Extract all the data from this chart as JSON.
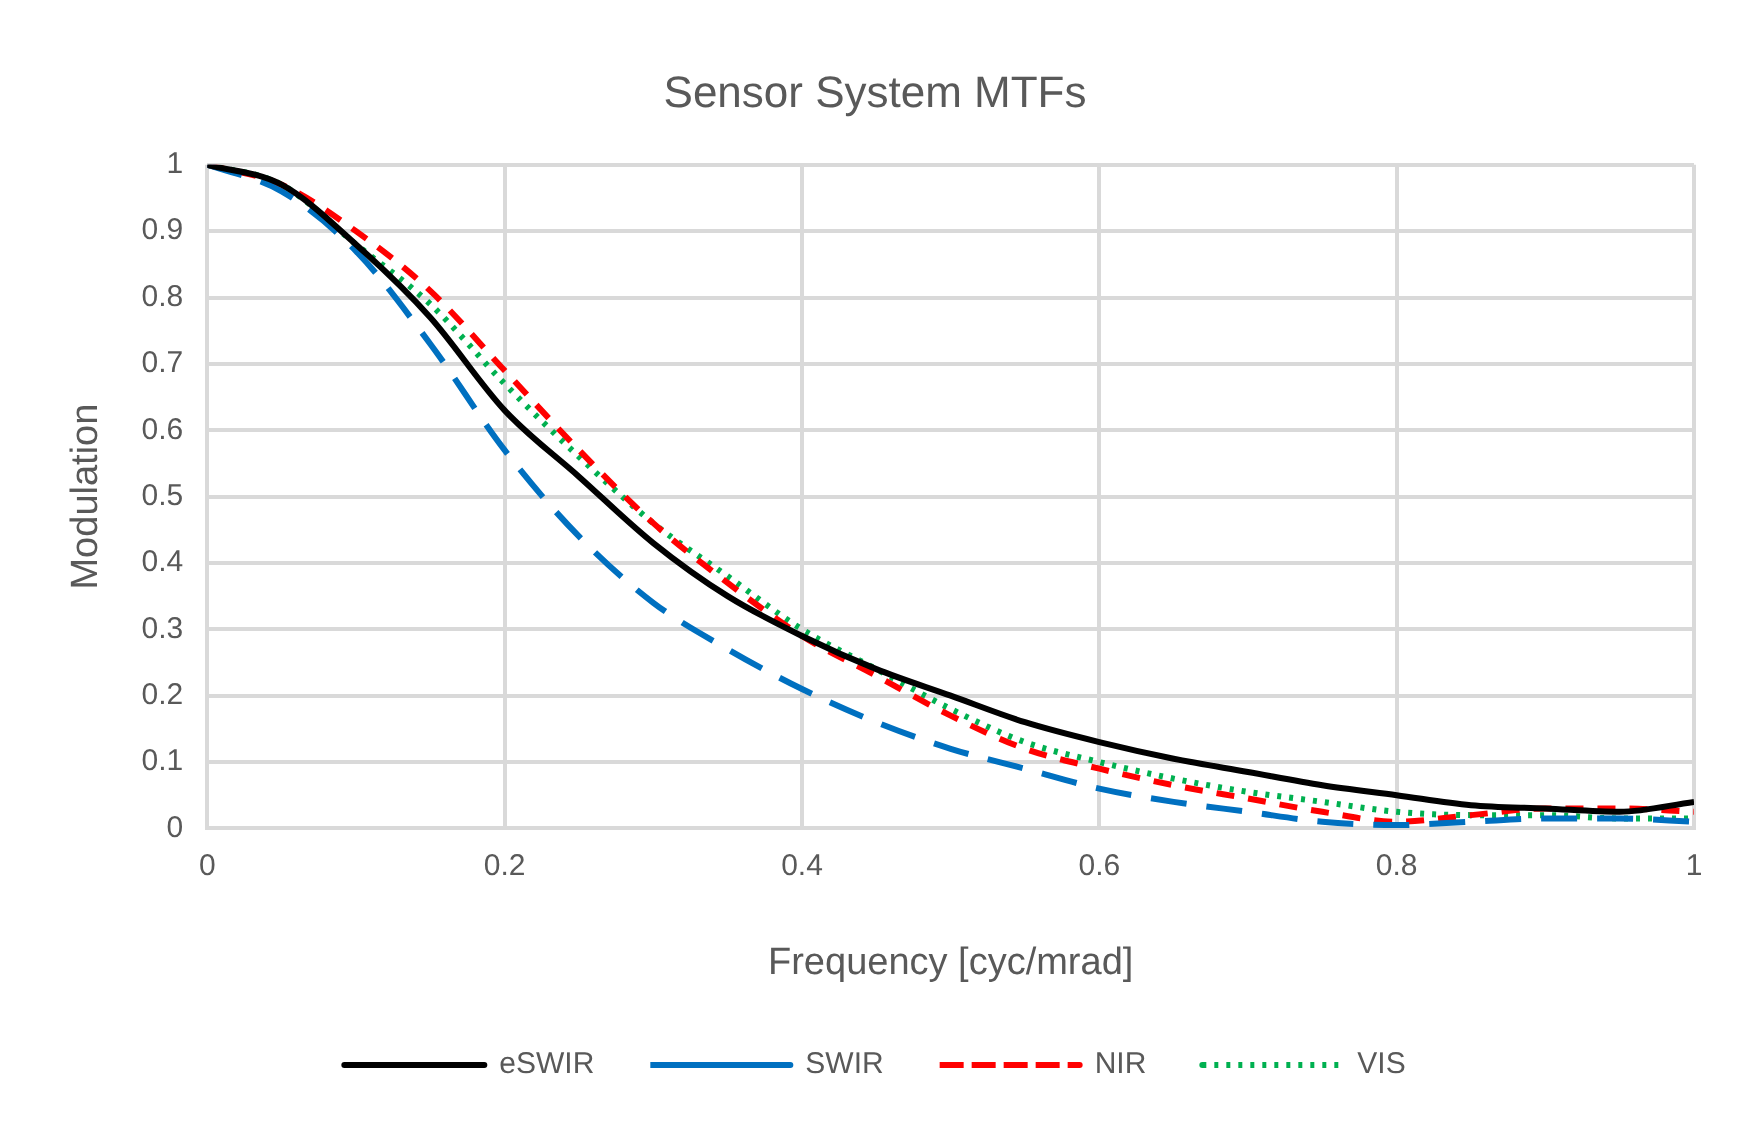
{
  "chart_data": {
    "type": "line",
    "title": "Sensor System MTFs",
    "xlabel": "Frequency [cyc/mrad]",
    "ylabel": "Modulation",
    "x": [
      0,
      0.05,
      0.1,
      0.15,
      0.2,
      0.25,
      0.3,
      0.35,
      0.4,
      0.45,
      0.5,
      0.55,
      0.6,
      0.65,
      0.7,
      0.75,
      0.8,
      0.85,
      0.9,
      0.95,
      1
    ],
    "series": [
      {
        "name": "eSWIR",
        "color": "#000000",
        "line_style": "solid",
        "values": [
          1,
          0.97,
          0.88,
          0.77,
          0.63,
          0.53,
          0.43,
          0.35,
          0.29,
          0.24,
          0.2,
          0.16,
          0.13,
          0.105,
          0.085,
          0.065,
          0.05,
          0.035,
          0.03,
          0.025,
          0.04
        ]
      },
      {
        "name": "SWIR",
        "color": "#0070c0",
        "line_style": "dashed",
        "values": [
          1,
          0.96,
          0.87,
          0.73,
          0.57,
          0.44,
          0.34,
          0.27,
          0.21,
          0.16,
          0.12,
          0.09,
          0.06,
          0.04,
          0.025,
          0.01,
          0.005,
          0.01,
          0.015,
          0.015,
          0.01
        ]
      },
      {
        "name": "NIR",
        "color": "#ff0000",
        "line_style": "dashed",
        "values": [
          1,
          0.97,
          0.9,
          0.81,
          0.69,
          0.57,
          0.46,
          0.37,
          0.29,
          0.23,
          0.17,
          0.12,
          0.09,
          0.065,
          0.045,
          0.025,
          0.01,
          0.02,
          0.03,
          0.03,
          0.025
        ]
      },
      {
        "name": "VIS",
        "color": "#00b050",
        "line_style": "dotted",
        "values": [
          1,
          0.97,
          0.88,
          0.79,
          0.67,
          0.56,
          0.46,
          0.38,
          0.3,
          0.24,
          0.18,
          0.13,
          0.1,
          0.075,
          0.055,
          0.04,
          0.025,
          0.02,
          0.02,
          0.015,
          0.015
        ]
      }
    ],
    "xlim": [
      0,
      1
    ],
    "xticks": [
      0,
      0.2,
      0.4,
      0.6,
      0.8,
      1
    ],
    "ylim": [
      0,
      1
    ],
    "yticks": [
      0,
      0.1,
      0.2,
      0.3,
      0.4,
      0.5,
      0.6,
      0.7,
      0.8,
      0.9,
      1
    ],
    "grid": true,
    "legend": "bottom",
    "marker": "none"
  }
}
